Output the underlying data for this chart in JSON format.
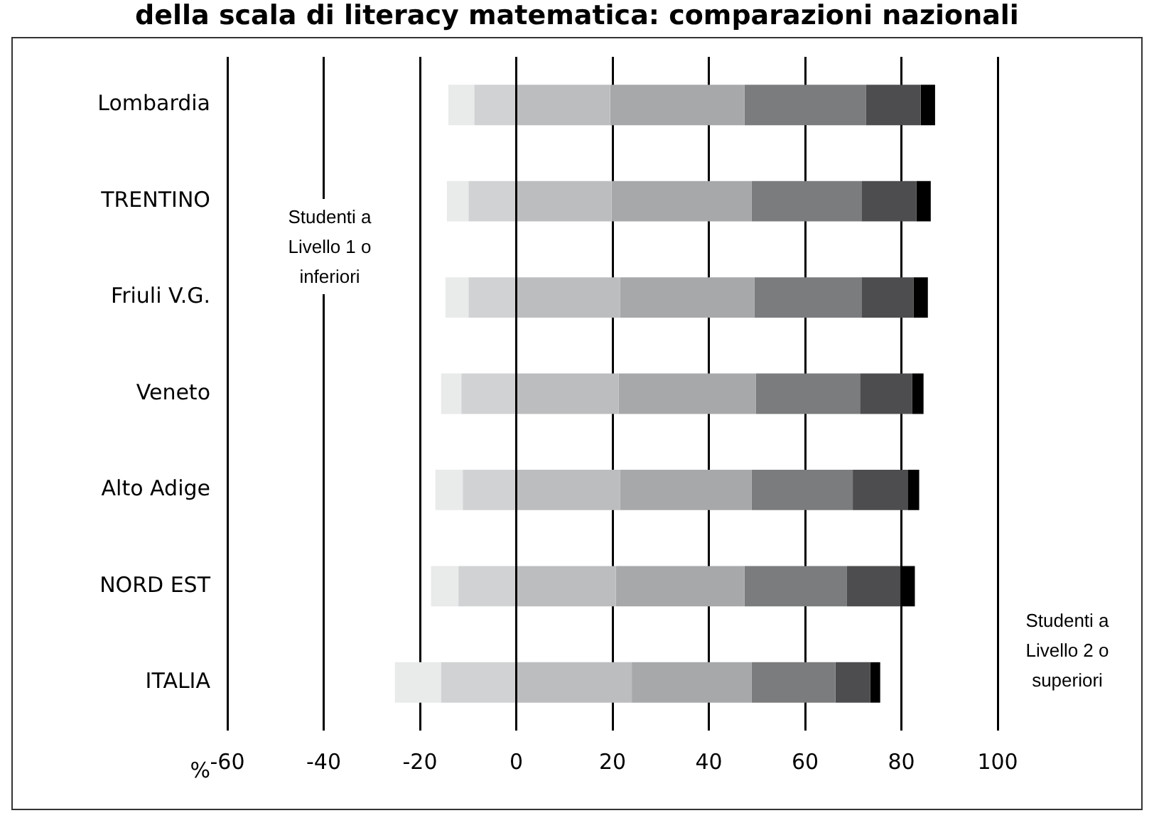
{
  "chart_data": {
    "type": "bar",
    "orientation": "horizontal",
    "stacked": true,
    "title": "della scala di literacy matematica: comparazioni nazionali",
    "xlabel": "%",
    "categories": [
      "Lombardia",
      "TRENTINO",
      "Friuli V.G.",
      "Veneto",
      "Alto Adige",
      "NORD EST",
      "ITALIA"
    ],
    "series": [
      {
        "color": "#d1d2d4",
        "values": [
          -8.7,
          -9.9,
          -9.9,
          -11.4,
          -11.1,
          -12.0,
          -15.6
        ]
      },
      {
        "color": "#e9eaea",
        "values": [
          -5.4,
          -4.5,
          -4.8,
          -4.2,
          -5.7,
          -5.7,
          -9.6
        ]
      },
      {
        "color": "#bcbdbf",
        "values": [
          19.5,
          19.8,
          21.6,
          21.3,
          21.6,
          20.7,
          24.0
        ]
      },
      {
        "color": "#a7a8aa",
        "values": [
          27.9,
          29.1,
          27.9,
          28.5,
          27.3,
          26.7,
          24.9
        ]
      },
      {
        "color": "#7b7c7e",
        "values": [
          25.2,
          22.8,
          22.2,
          21.6,
          21.0,
          21.3,
          17.4
        ]
      },
      {
        "color": "#4d4d4f",
        "values": [
          11.4,
          11.4,
          10.8,
          10.8,
          11.4,
          11.1,
          7.2
        ]
      },
      {
        "color": "#000000",
        "values": [
          3.0,
          3.0,
          3.0,
          2.4,
          2.4,
          3.0,
          2.1
        ]
      }
    ],
    "xlim": [
      -60,
      100
    ],
    "xticks": [
      -60,
      -40,
      -20,
      0,
      20,
      40,
      60,
      80,
      100
    ],
    "grid": "x",
    "legend": false,
    "annotations": [
      "Studenti a Livello 1 o inferiori",
      "Studenti a Livello 2 o superiori"
    ]
  }
}
